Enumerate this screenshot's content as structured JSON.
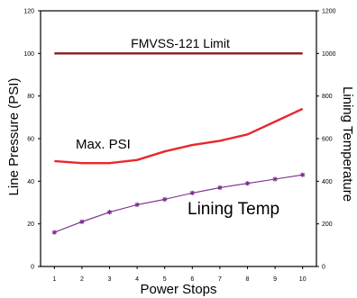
{
  "chart_data": {
    "type": "line",
    "x": [
      1,
      2,
      3,
      4,
      5,
      6,
      7,
      8,
      9,
      10
    ],
    "xlabel": "Power Stops",
    "ylabel": "Line Pressure (PSI)",
    "y2label": "Lining Temperature",
    "xlim": [
      0.5,
      10.5
    ],
    "ylim": [
      0,
      120
    ],
    "y2lim": [
      0,
      1200
    ],
    "xticks": [
      "1",
      "2",
      "3",
      "4",
      "5",
      "6",
      "7",
      "8",
      "9",
      "10"
    ],
    "yticks": [
      "0",
      "20",
      "40",
      "60",
      "80",
      "100",
      "120"
    ],
    "y2ticks": [
      "0",
      "200",
      "400",
      "600",
      "800",
      "1000",
      "1200"
    ],
    "grid": false,
    "series": [
      {
        "name": "FMVSS-121 Limit",
        "axis": "left",
        "values": [
          100,
          100,
          100,
          100,
          100,
          100,
          100,
          100,
          100,
          100
        ],
        "color": "#8b1a1a",
        "marker": "none"
      },
      {
        "name": "Max. PSI",
        "axis": "left",
        "values": [
          49.5,
          48.5,
          48.5,
          50,
          54,
          57,
          59,
          62,
          68,
          74
        ],
        "color": "#e8282b",
        "marker": "none"
      },
      {
        "name": "Lining Temp",
        "axis": "right",
        "values": [
          160,
          210,
          255,
          290,
          315,
          345,
          370,
          390,
          410,
          430
        ],
        "color": "#7b2a8c",
        "marker": "star"
      }
    ]
  }
}
